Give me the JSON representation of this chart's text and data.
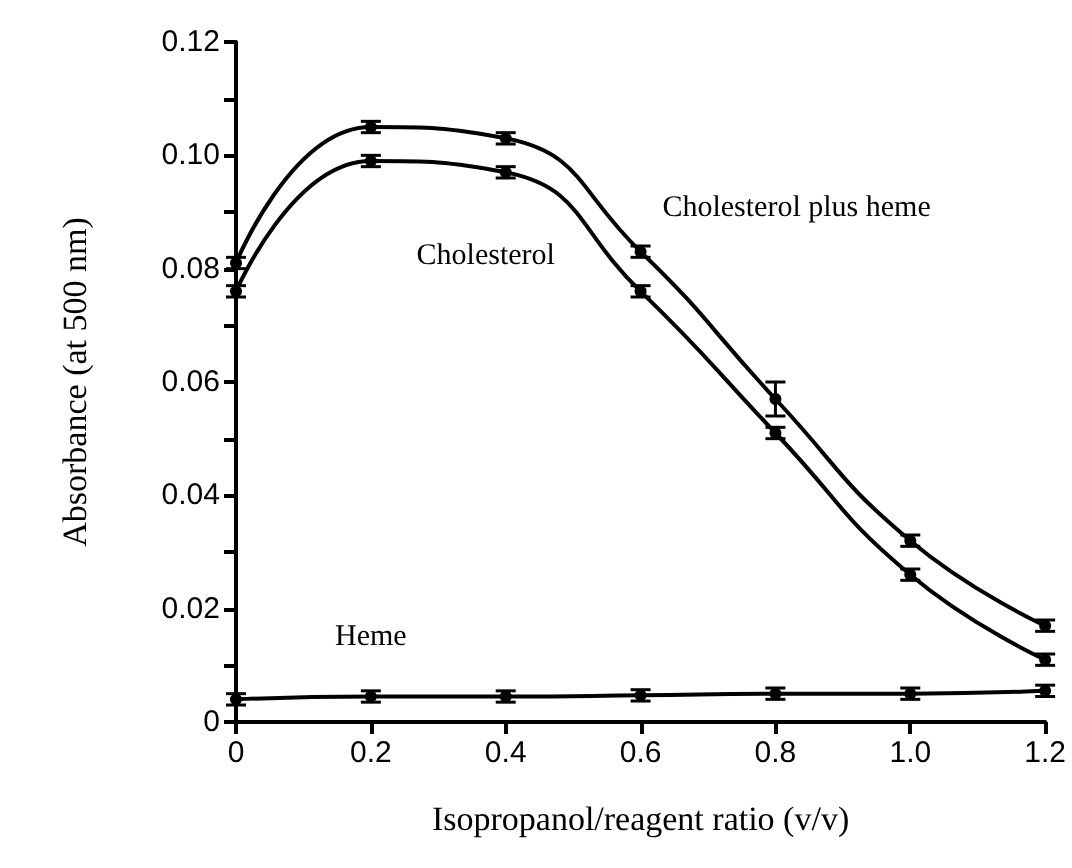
{
  "chart_data": {
    "type": "line",
    "xlabel": "Isopropanol/reagent ratio (v/v)",
    "ylabel": "Absorbance (at 500 nm)",
    "x": [
      0,
      0.2,
      0.4,
      0.6,
      0.8,
      1.0,
      1.2
    ],
    "series": [
      {
        "name": "Cholesterol plus heme",
        "color": "#000000",
        "values": [
          0.081,
          0.105,
          0.103,
          0.083,
          0.057,
          0.032,
          0.017
        ],
        "errors": [
          0.001,
          0.001,
          0.001,
          0.001,
          0.003,
          0.001,
          0.001
        ]
      },
      {
        "name": "Cholesterol",
        "color": "#000000",
        "values": [
          0.076,
          0.099,
          0.097,
          0.076,
          0.051,
          0.026,
          0.011
        ],
        "errors": [
          0.001,
          0.001,
          0.001,
          0.001,
          0.001,
          0.001,
          0.001
        ]
      },
      {
        "name": "Heme",
        "color": "#000000",
        "values": [
          0.004,
          0.0045,
          0.0045,
          0.0047,
          0.005,
          0.005,
          0.0055
        ],
        "errors": [
          0.001,
          0.001,
          0.001,
          0.001,
          0.001,
          0.001,
          0.001
        ]
      }
    ],
    "xlim": [
      0,
      1.2
    ],
    "xticks": [
      0,
      0.2,
      0.4,
      0.6,
      0.8,
      {
        "value": 1,
        "label": "1.0"
      },
      1.2
    ],
    "ylim": [
      0,
      0.12
    ],
    "yticks": [
      0,
      {
        "value": 0.01,
        "label": null
      },
      0.02,
      {
        "value": 0.03,
        "label": null
      },
      0.04,
      {
        "value": 0.05,
        "label": null
      },
      0.06,
      {
        "value": 0.07,
        "label": null
      },
      0.08,
      {
        "value": 0.09,
        "label": null
      },
      {
        "value": 0.1,
        "label": "0.10"
      },
      {
        "value": 0.11,
        "label": null
      },
      0.12
    ],
    "grid": false,
    "legend": false,
    "marker": "circle",
    "line_style": "solid"
  }
}
